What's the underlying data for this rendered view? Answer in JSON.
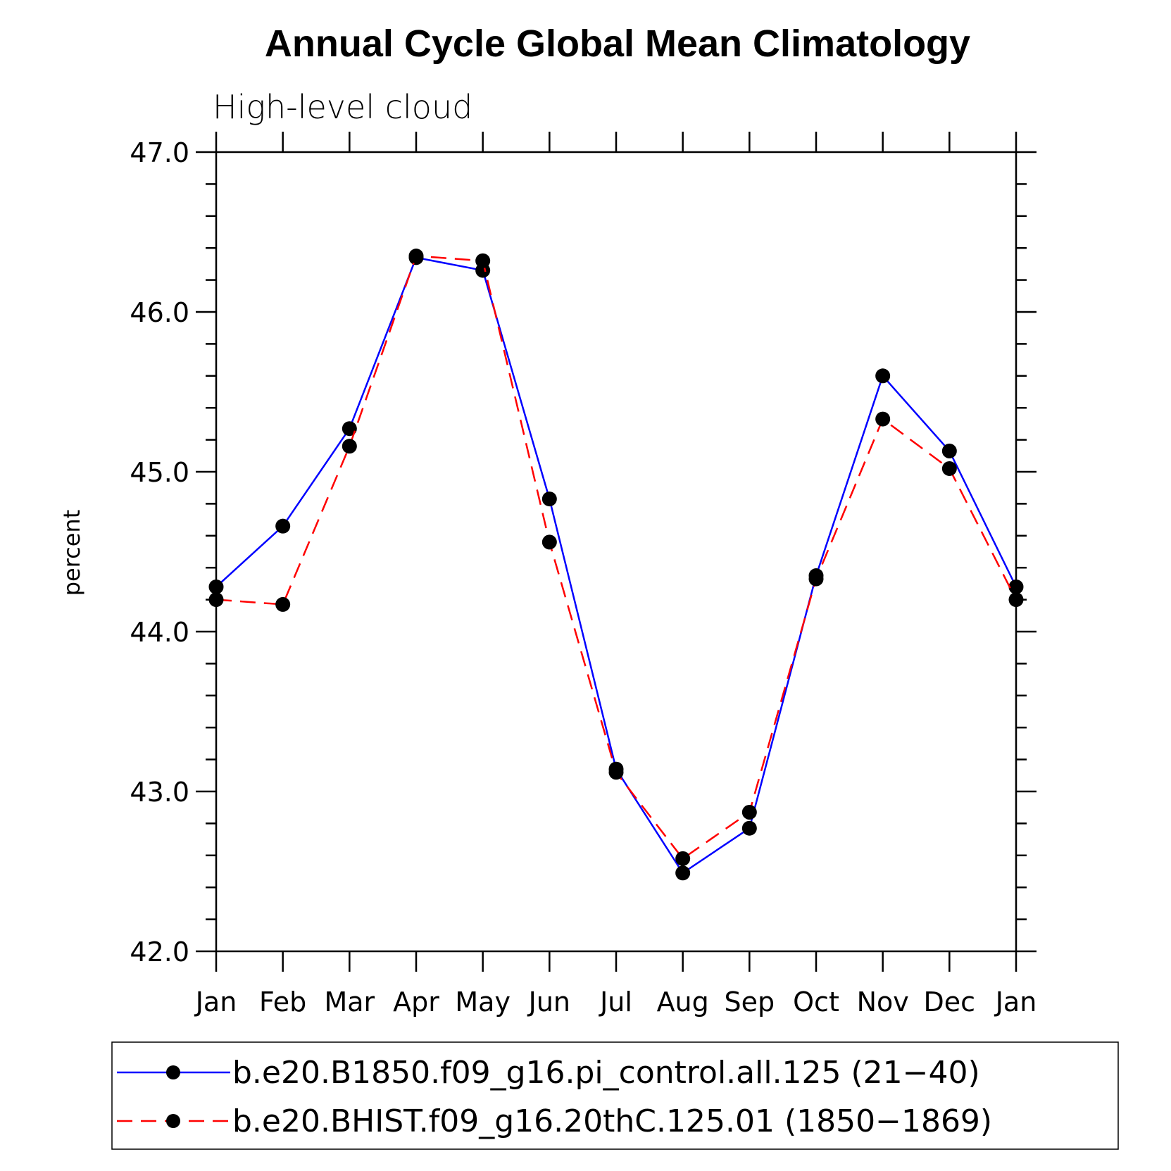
{
  "chart_data": {
    "type": "line",
    "title": "Annual Cycle Global Mean Climatology",
    "subtitle": "High-level cloud",
    "xlabel": "",
    "ylabel": "percent",
    "ylim": [
      42.0,
      47.0
    ],
    "yticks": [
      "42.0",
      "43.0",
      "44.0",
      "45.0",
      "46.0",
      "47.0"
    ],
    "categories": [
      "Jan",
      "Feb",
      "Mar",
      "Apr",
      "May",
      "Jun",
      "Jul",
      "Aug",
      "Sep",
      "Oct",
      "Nov",
      "Dec",
      "Jan"
    ],
    "grid": false,
    "legend_position": "bottom",
    "series": [
      {
        "name": "b.e20.B1850.f09_g16.pi_control.all.125 (21−40)",
        "color": "#0000ff",
        "style": "solid",
        "marker": "filled-circle",
        "values": [
          44.28,
          44.66,
          45.27,
          46.34,
          46.26,
          44.83,
          43.14,
          42.49,
          42.77,
          44.35,
          45.6,
          45.13,
          44.28
        ]
      },
      {
        "name": "b.e20.BHIST.f09_g16.20thC.125.01 (1850−1869)",
        "color": "#ff0000",
        "style": "dashed",
        "marker": "filled-circle",
        "values": [
          44.2,
          44.17,
          45.16,
          46.35,
          46.32,
          44.56,
          43.12,
          42.58,
          42.87,
          44.33,
          45.33,
          45.02,
          44.2
        ]
      }
    ]
  }
}
